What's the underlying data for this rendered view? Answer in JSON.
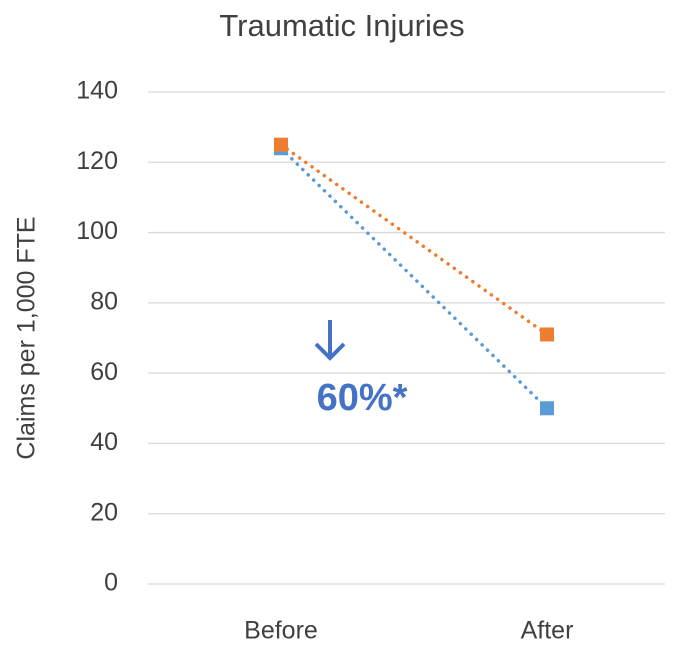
{
  "chart_data": {
    "type": "line",
    "title": "Traumatic Injuries",
    "y_label": "Claims per 1,000 FTE",
    "categories": [
      "Before",
      "After"
    ],
    "series": [
      {
        "color": "#5b9bd5",
        "values": [
          124,
          50
        ]
      },
      {
        "color": "#ed7d31",
        "values": [
          125,
          71
        ]
      }
    ],
    "annotation": "60%*",
    "ylim": [
      0,
      140
    ],
    "yticks": [
      0,
      20,
      40,
      60,
      80,
      100,
      120,
      140
    ],
    "grid": true
  }
}
